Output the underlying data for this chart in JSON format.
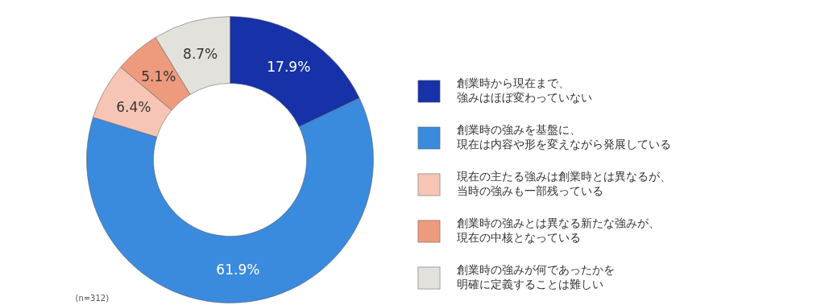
{
  "chart_data": {
    "type": "donut",
    "categories": [
      "創業時から現在まで、強みはほぼ変わっていない",
      "創業時の強みを基盤に、現在は内容や形を変えながら発展している",
      "現在の主たる強みは創業時とは異なるが、当時の強みも一部残っている",
      "創業時の強みとは異なる新たな強みが、現在の中核となっている",
      "創業時の強みが何であったかを明確に定義することは難しい"
    ],
    "values": [
      17.9,
      61.9,
      6.4,
      5.1,
      8.7
    ],
    "value_labels": [
      "17.9%",
      "61.9%",
      "6.4%",
      "5.1%",
      "8.7%"
    ],
    "colors": [
      "#1731a8",
      "#3a8ade",
      "#f6c5b5",
      "#ee9a7c",
      "#e3e1dc"
    ],
    "legend": "right",
    "annotations": [
      "(n=312)"
    ]
  }
}
